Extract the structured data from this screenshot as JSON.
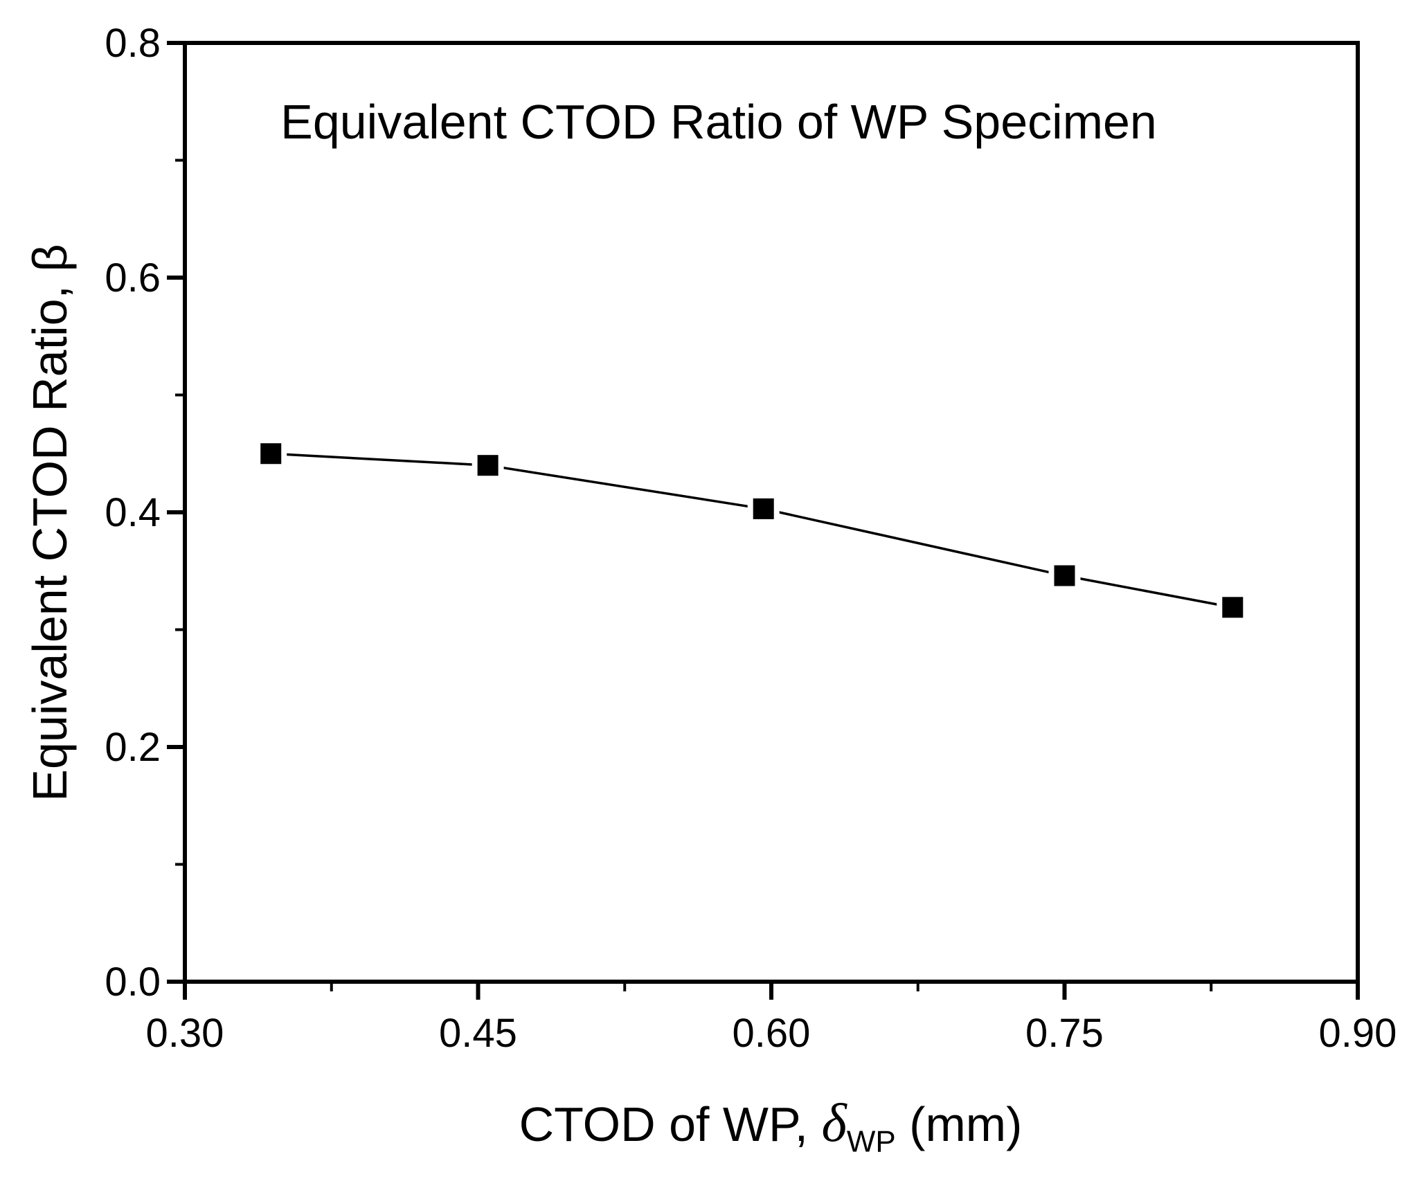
{
  "figure": {
    "background_color": "#ffffff",
    "foreground_color": "#000000"
  },
  "chart_data": {
    "type": "scatter",
    "title": "Equivalent CTOD Ratio of WP Specimen",
    "ylabel": "Equivalent CTOD Ratio, β",
    "xlabel_parts": {
      "prefix": "CTOD of WP, ",
      "symbol": "δ",
      "subscript": "WP",
      "suffix": " (mm)"
    },
    "series": [
      {
        "name": "Equivalent CTOD ratio of WP specimen",
        "marker": "filled-square",
        "color": "#000000",
        "x": [
          0.344,
          0.455,
          0.596,
          0.75,
          0.836
        ],
        "y": [
          0.45,
          0.44,
          0.403,
          0.346,
          0.319
        ]
      }
    ],
    "xlim": [
      0.3,
      0.9
    ],
    "ylim": [
      0.0,
      0.8
    ],
    "xticks": {
      "values": [
        0.3,
        0.45,
        0.6,
        0.75,
        0.9
      ],
      "labels": [
        "0.30",
        "0.45",
        "0.60",
        "0.75",
        "0.90"
      ]
    },
    "yticks": {
      "values": [
        0.0,
        0.2,
        0.4,
        0.6,
        0.8
      ],
      "labels": [
        "0.0",
        "0.2",
        "0.4",
        "0.6",
        "0.8"
      ]
    },
    "x_minor_ticks": [
      0.375,
      0.525,
      0.675,
      0.825
    ],
    "y_minor_ticks": [
      0.1,
      0.3,
      0.5,
      0.7
    ],
    "grid": "off",
    "legend": "none",
    "tick_direction": "out",
    "frame": "box"
  }
}
